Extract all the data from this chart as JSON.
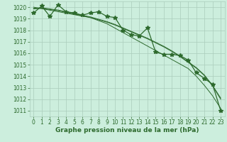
{
  "xlabel": "Graphe pression niveau de la mer (hPa)",
  "x": [
    0,
    1,
    2,
    3,
    4,
    5,
    6,
    7,
    8,
    9,
    10,
    11,
    12,
    13,
    14,
    15,
    16,
    17,
    18,
    19,
    20,
    21,
    22,
    23
  ],
  "y_main": [
    1019.5,
    1020.1,
    1019.2,
    1020.2,
    1019.6,
    1019.5,
    1019.3,
    1019.5,
    1019.6,
    1019.2,
    1019.1,
    1018.0,
    1017.6,
    1017.5,
    1018.2,
    1016.1,
    1015.9,
    1015.9,
    1015.8,
    1015.4,
    1014.3,
    1013.8,
    1013.3,
    1011.0
  ],
  "y_smooth1": [
    1019.9,
    1019.95,
    1019.85,
    1019.75,
    1019.6,
    1019.45,
    1019.3,
    1019.15,
    1018.95,
    1018.75,
    1018.5,
    1018.2,
    1017.9,
    1017.6,
    1017.3,
    1016.95,
    1016.6,
    1016.2,
    1015.75,
    1015.25,
    1014.75,
    1014.1,
    1013.2,
    1012.1
  ],
  "y_smooth2": [
    1019.85,
    1019.9,
    1019.8,
    1019.7,
    1019.55,
    1019.4,
    1019.25,
    1019.1,
    1018.9,
    1018.7,
    1018.45,
    1018.15,
    1017.85,
    1017.55,
    1017.25,
    1016.9,
    1016.55,
    1016.15,
    1015.7,
    1015.2,
    1014.7,
    1014.05,
    1013.15,
    1012.0
  ],
  "y_trend": [
    1020.0,
    1019.87,
    1019.74,
    1019.61,
    1019.48,
    1019.35,
    1019.22,
    1019.09,
    1018.83,
    1018.57,
    1018.18,
    1017.79,
    1017.4,
    1017.01,
    1016.62,
    1016.23,
    1015.84,
    1015.45,
    1015.06,
    1014.67,
    1014.0,
    1013.2,
    1012.3,
    1011.2
  ],
  "bg_color": "#cceedd",
  "grid_color": "#aaccbb",
  "line_color": "#2d6a2d",
  "marker": "*",
  "marker_size": 4,
  "ylim_min": 1010.5,
  "ylim_max": 1020.5,
  "yticks": [
    1011,
    1012,
    1013,
    1014,
    1015,
    1016,
    1017,
    1018,
    1019,
    1020
  ],
  "xticks": [
    0,
    1,
    2,
    3,
    4,
    5,
    6,
    7,
    8,
    9,
    10,
    11,
    12,
    13,
    14,
    15,
    16,
    17,
    18,
    19,
    20,
    21,
    22,
    23
  ],
  "xlabel_fontsize": 6.5,
  "tick_fontsize": 5.5,
  "lw_main": 0.9,
  "lw_thin": 0.7
}
